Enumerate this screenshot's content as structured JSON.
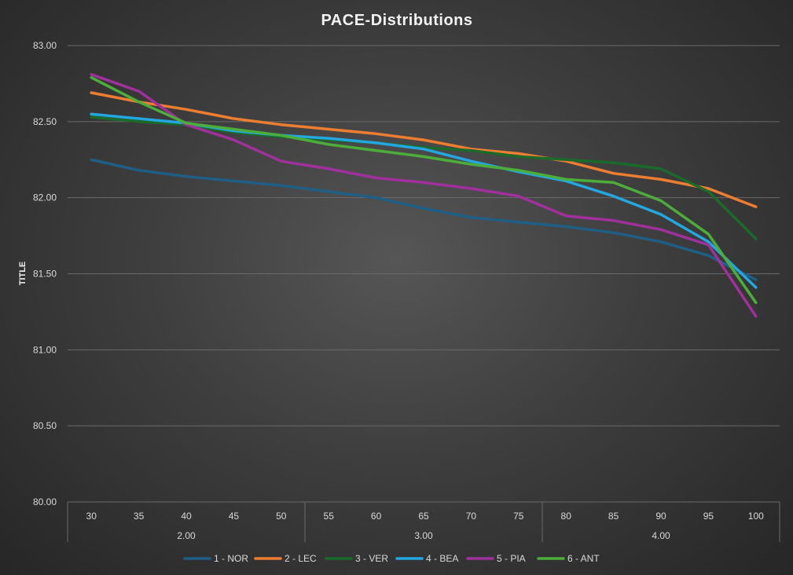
{
  "chart_data": {
    "type": "line",
    "title": "PACE-Distributions",
    "xlabel": "",
    "ylabel": "TITLE",
    "categories": [
      "30",
      "35",
      "40",
      "45",
      "50",
      "55",
      "60",
      "65",
      "70",
      "75",
      "80",
      "85",
      "90",
      "95",
      "100"
    ],
    "groups": [
      {
        "label": "2.00",
        "start": 0,
        "end": 4
      },
      {
        "label": "3.00",
        "start": 5,
        "end": 9
      },
      {
        "label": "4.00",
        "start": 10,
        "end": 14
      }
    ],
    "ylim": [
      80.0,
      83.0
    ],
    "yticks": [
      "80.00",
      "80.50",
      "81.00",
      "81.50",
      "82.00",
      "82.50",
      "83.00"
    ],
    "grid": true,
    "legend_position": "bottom",
    "series": [
      {
        "name": "1 - NOR",
        "color": "#1f5f86",
        "values": [
          82.25,
          82.18,
          82.14,
          82.11,
          82.08,
          82.04,
          82.0,
          81.93,
          81.87,
          81.84,
          81.81,
          81.77,
          81.71,
          81.62,
          81.46
        ]
      },
      {
        "name": "2 - LEC",
        "color": "#ed7d31",
        "values": [
          82.69,
          82.63,
          82.58,
          82.52,
          82.48,
          82.45,
          82.42,
          82.38,
          82.32,
          82.29,
          82.24,
          82.16,
          82.12,
          82.06,
          81.94
        ]
      },
      {
        "name": "3 - VER",
        "color": "#1a6b2a",
        "values": [
          82.53,
          82.5,
          82.48,
          82.43,
          82.4,
          82.38,
          82.36,
          82.33,
          82.31,
          82.27,
          82.25,
          82.23,
          82.19,
          82.04,
          81.73
        ]
      },
      {
        "name": "4 - BEA",
        "color": "#22a7e0",
        "values": [
          82.55,
          82.52,
          82.49,
          82.44,
          82.41,
          82.39,
          82.36,
          82.32,
          82.24,
          82.17,
          82.11,
          82.01,
          81.89,
          81.71,
          81.41
        ]
      },
      {
        "name": "5 - PIA",
        "color": "#a0309c",
        "values": [
          82.81,
          82.7,
          82.48,
          82.38,
          82.24,
          82.19,
          82.13,
          82.1,
          82.06,
          82.01,
          81.88,
          81.85,
          81.79,
          81.69,
          81.22
        ]
      },
      {
        "name": "6 - ANT",
        "color": "#4cae3a",
        "values": [
          82.79,
          82.63,
          82.49,
          82.45,
          82.41,
          82.35,
          82.31,
          82.27,
          82.22,
          82.18,
          82.12,
          82.1,
          81.98,
          81.76,
          81.31
        ]
      }
    ]
  }
}
